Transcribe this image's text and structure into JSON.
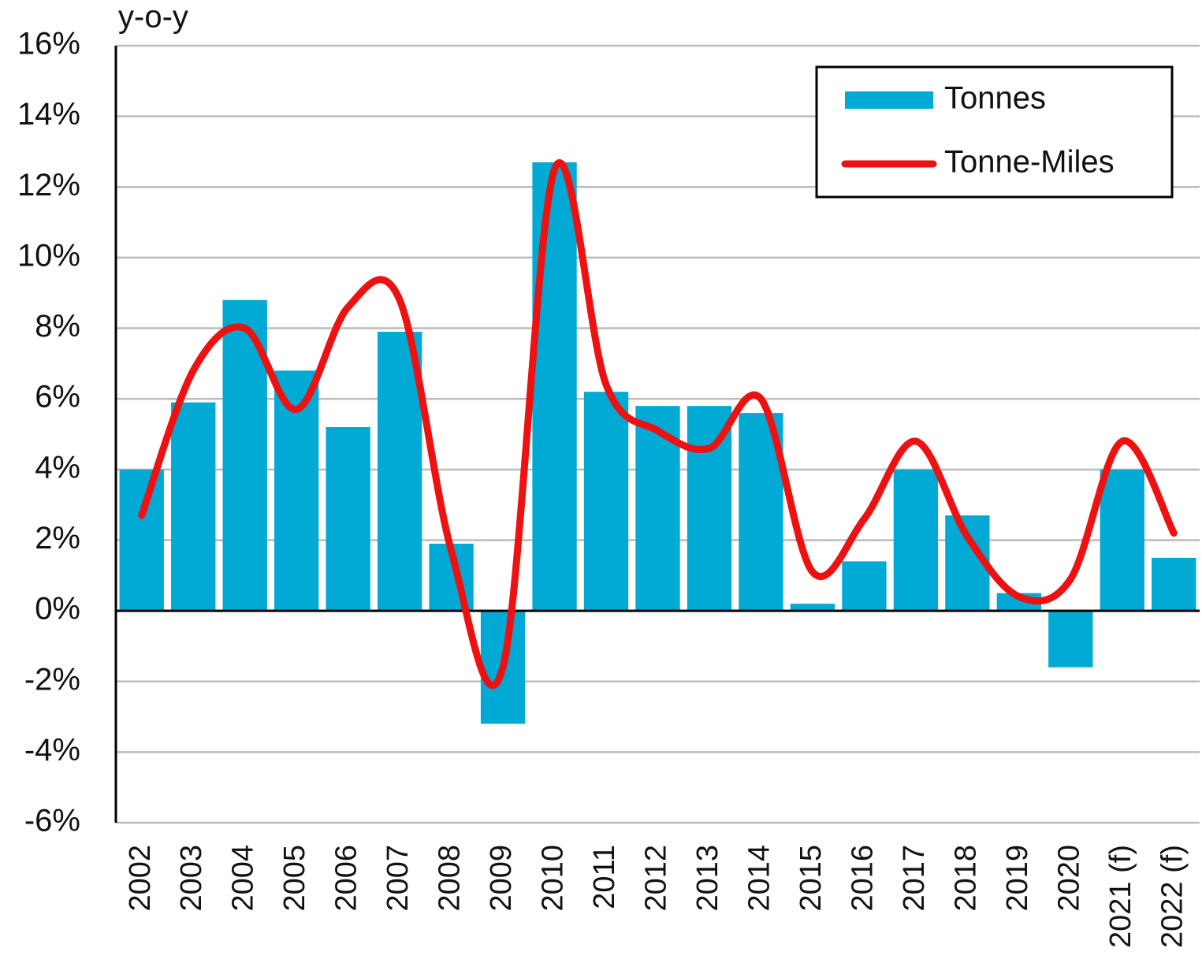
{
  "chart_data": {
    "type": "bar-line",
    "y_label": "y-o-y",
    "categories": [
      "2002",
      "2003",
      "2004",
      "2005",
      "2006",
      "2007",
      "2008",
      "2009",
      "2010",
      "2011",
      "2012",
      "2013",
      "2014",
      "2015",
      "2016",
      "2017",
      "2018",
      "2019",
      "2020",
      "2021 (f)",
      "2022 (f)"
    ],
    "series": [
      {
        "name": "Tonnes",
        "type": "bar",
        "color": "#00aad4",
        "values": [
          4.0,
          5.9,
          8.8,
          6.8,
          5.2,
          7.9,
          1.9,
          -3.2,
          12.7,
          6.2,
          5.8,
          5.8,
          5.6,
          0.2,
          1.4,
          4.0,
          2.7,
          0.5,
          -1.6,
          4.0,
          1.5
        ]
      },
      {
        "name": "Tonne-Miles",
        "type": "line",
        "color": "#ee1111",
        "values": [
          2.7,
          6.8,
          8.0,
          5.7,
          8.6,
          8.8,
          1.7,
          -1.6,
          12.5,
          6.4,
          5.1,
          4.6,
          6.0,
          1.1,
          2.6,
          4.8,
          2.1,
          0.4,
          0.9,
          4.8,
          2.2
        ]
      }
    ],
    "ylim": [
      -6,
      16
    ],
    "yticks": [
      {
        "value": -6,
        "label": "-6%"
      },
      {
        "value": -4,
        "label": "-4%"
      },
      {
        "value": -2,
        "label": "-2%"
      },
      {
        "value": 0,
        "label": "0%"
      },
      {
        "value": 2,
        "label": "2%"
      },
      {
        "value": 4,
        "label": "4%"
      },
      {
        "value": 6,
        "label": "6%"
      },
      {
        "value": 8,
        "label": "8%"
      },
      {
        "value": 10,
        "label": "10%"
      },
      {
        "value": 12,
        "label": "12%"
      },
      {
        "value": 14,
        "label": "14%"
      },
      {
        "value": 16,
        "label": "16%"
      }
    ],
    "grid": true,
    "legend": "upper right"
  }
}
